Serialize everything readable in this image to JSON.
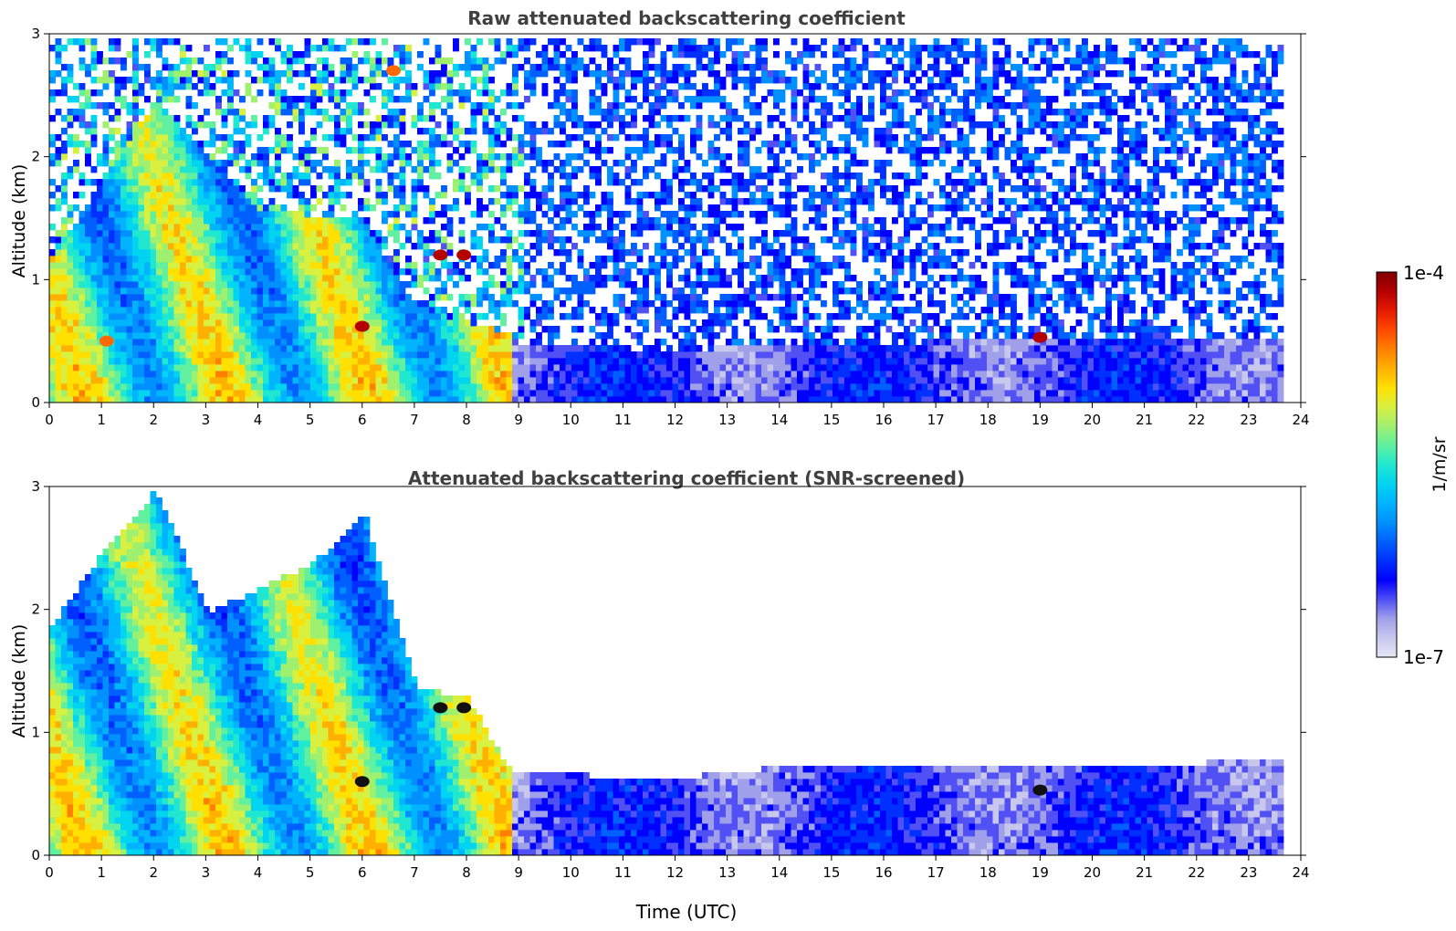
{
  "figure": {
    "colorbar": {
      "max_label": "1e-4",
      "min_label": "1e-7",
      "unit_label": "1/m/sr",
      "scale": "log",
      "range": [
        1e-07,
        0.0001
      ],
      "colors": [
        "#e6e6f5",
        "#c8c8ef",
        "#a0a0ea",
        "#5050f5",
        "#0000ff",
        "#0030ff",
        "#0060ff",
        "#0090ff",
        "#00b4ff",
        "#00d4f0",
        "#20e8d0",
        "#60f0a0",
        "#a0f070",
        "#d8f040",
        "#ffe000",
        "#ffb000",
        "#ff8000",
        "#ff4800",
        "#e61a00",
        "#b40000",
        "#800000"
      ]
    },
    "axes_shared": {
      "xlabel": "Time (UTC)",
      "ylabel": "Altitude (km)",
      "xlim": [
        0,
        24
      ],
      "ylim": [
        0,
        3
      ],
      "xticks": [
        "0",
        "1",
        "2",
        "3",
        "4",
        "5",
        "6",
        "7",
        "8",
        "9",
        "10",
        "11",
        "12",
        "13",
        "14",
        "15",
        "16",
        "17",
        "18",
        "19",
        "20",
        "21",
        "22",
        "23",
        "24"
      ],
      "yticks": [
        "0",
        "1",
        "2",
        "3"
      ]
    }
  },
  "chart_data": [
    {
      "type": "heatmap",
      "title": "Raw attenuated backscattering coefficient",
      "xlabel": "",
      "ylabel": "Altitude (km)",
      "xlim": [
        0,
        24
      ],
      "ylim": [
        0,
        3
      ],
      "color_scale": "log 1e-7 to 1e-4 (1/m/sr)",
      "boundary_layer_top_km": [
        {
          "x": 0,
          "y": 1.2
        },
        {
          "x": 2,
          "y": 2.5
        },
        {
          "x": 4,
          "y": 1.6
        },
        {
          "x": 6,
          "y": 1.5
        },
        {
          "x": 7,
          "y": 0.8
        },
        {
          "x": 8.7,
          "y": 0.6
        },
        {
          "x": 9,
          "y": 0.5
        },
        {
          "x": 12,
          "y": 0.45
        },
        {
          "x": 14,
          "y": 0.5
        },
        {
          "x": 16,
          "y": 0.5
        },
        {
          "x": 18,
          "y": 0.55
        },
        {
          "x": 20,
          "y": 0.55
        },
        {
          "x": 22,
          "y": 0.55
        },
        {
          "x": 23.6,
          "y": 0.55
        }
      ],
      "strong_returns": [
        {
          "x": 1.1,
          "y": 0.5,
          "level": "high"
        },
        {
          "x": 6.0,
          "y": 0.62,
          "level": "peak"
        },
        {
          "x": 7.5,
          "y": 1.2,
          "level": "peak"
        },
        {
          "x": 7.95,
          "y": 1.2,
          "level": "peak"
        },
        {
          "x": 6.6,
          "y": 2.7,
          "level": "high"
        },
        {
          "x": 19.0,
          "y": 0.53,
          "level": "peak"
        }
      ],
      "data_end_time": 23.6
    },
    {
      "type": "heatmap",
      "title": "Attenuated backscattering coefficient (SNR-screened)",
      "xlabel": "Time (UTC)",
      "ylabel": "Altitude (km)",
      "xlim": [
        0,
        24
      ],
      "ylim": [
        0,
        3
      ],
      "color_scale": "log 1e-7 to 1e-4 (1/m/sr)",
      "screened_top_km": [
        {
          "x": 0,
          "y": 1.9
        },
        {
          "x": 1,
          "y": 2.5
        },
        {
          "x": 2,
          "y": 3.0
        },
        {
          "x": 3,
          "y": 2.0
        },
        {
          "x": 4,
          "y": 2.2
        },
        {
          "x": 5,
          "y": 2.4
        },
        {
          "x": 6,
          "y": 2.8
        },
        {
          "x": 7,
          "y": 1.4
        },
        {
          "x": 8,
          "y": 1.3
        },
        {
          "x": 8.8,
          "y": 0.7
        },
        {
          "x": 12,
          "y": 0.65
        },
        {
          "x": 14,
          "y": 0.75
        },
        {
          "x": 16,
          "y": 0.75
        },
        {
          "x": 18,
          "y": 0.75
        },
        {
          "x": 20,
          "y": 0.75
        },
        {
          "x": 23.6,
          "y": 0.8
        }
      ],
      "saturated_points": [
        {
          "x": 6.0,
          "y": 0.6
        },
        {
          "x": 7.5,
          "y": 1.2
        },
        {
          "x": 7.95,
          "y": 1.2
        },
        {
          "x": 19.0,
          "y": 0.53
        }
      ],
      "data_end_time": 23.6
    }
  ]
}
